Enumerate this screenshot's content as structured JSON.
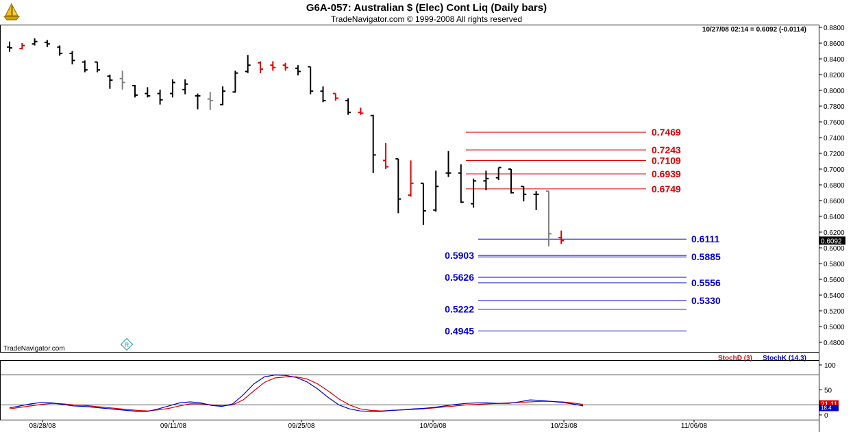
{
  "header": {
    "title": "G6A-057:  Australian $ (Elec) Cont Liq  (Daily bars)",
    "subtitle": "TradeNavigator.com © 1999-2008 All rights reserved",
    "quote": "10/27/08 02:14 = 0.6092 (-0.0114)",
    "watermark": "TradeNavigator.com",
    "logo_icon": "sailboat-logo-icon",
    "reg_mark": "R"
  },
  "chart_data": [
    {
      "type": "ohlc",
      "title": "G6A-057:  Australian $ (Elec) Cont Liq  (Daily bars)",
      "ylim": [
        0.48,
        0.88
      ],
      "y_ticks": [
        "0.8800",
        "0.8600",
        "0.8400",
        "0.8200",
        "0.8000",
        "0.7800",
        "0.7600",
        "0.7400",
        "0.7200",
        "0.7000",
        "0.6800",
        "0.6600",
        "0.6400",
        "0.6200",
        "0.6000",
        "0.5800",
        "0.5600",
        "0.5400",
        "0.5200",
        "0.5000",
        "0.4800"
      ],
      "x_ticks": [
        "08/28/08",
        "09/11/08",
        "09/25/08",
        "10/09/08",
        "10/23/08",
        "11/06/08"
      ],
      "last_price": "0.6092",
      "colors": {
        "up": "#000000",
        "down_red": "#dd0000",
        "gray": "#808080",
        "green": "#00aa00"
      },
      "bars": [
        {
          "o": 0.855,
          "h": 0.862,
          "l": 0.849,
          "c": 0.854,
          "color": "black"
        },
        {
          "o": 0.853,
          "h": 0.86,
          "l": 0.852,
          "c": 0.857,
          "color": "red"
        },
        {
          "o": 0.859,
          "h": 0.866,
          "l": 0.857,
          "c": 0.862,
          "color": "black"
        },
        {
          "o": 0.861,
          "h": 0.864,
          "l": 0.855,
          "c": 0.859,
          "color": "black"
        },
        {
          "o": 0.855,
          "h": 0.857,
          "l": 0.844,
          "c": 0.847,
          "color": "black"
        },
        {
          "o": 0.847,
          "h": 0.85,
          "l": 0.833,
          "c": 0.838,
          "color": "black"
        },
        {
          "o": 0.836,
          "h": 0.838,
          "l": 0.823,
          "c": 0.826,
          "color": "black"
        },
        {
          "o": 0.836,
          "h": 0.836,
          "l": 0.823,
          "c": 0.826,
          "color": "black"
        },
        {
          "o": 0.818,
          "h": 0.82,
          "l": 0.802,
          "c": 0.813,
          "color": "black"
        },
        {
          "o": 0.815,
          "h": 0.825,
          "l": 0.801,
          "c": 0.81,
          "color": "gray"
        },
        {
          "o": 0.806,
          "h": 0.807,
          "l": 0.791,
          "c": 0.794,
          "color": "black"
        },
        {
          "o": 0.796,
          "h": 0.804,
          "l": 0.791,
          "c": 0.793,
          "color": "black"
        },
        {
          "o": 0.796,
          "h": 0.801,
          "l": 0.782,
          "c": 0.788,
          "color": "black"
        },
        {
          "o": 0.796,
          "h": 0.814,
          "l": 0.791,
          "c": 0.81,
          "color": "black"
        },
        {
          "o": 0.801,
          "h": 0.814,
          "l": 0.795,
          "c": 0.808,
          "color": "black"
        },
        {
          "o": 0.793,
          "h": 0.796,
          "l": 0.776,
          "c": 0.793,
          "color": "black"
        },
        {
          "o": 0.789,
          "h": 0.798,
          "l": 0.775,
          "c": 0.787,
          "color": "gray"
        },
        {
          "o": 0.782,
          "h": 0.805,
          "l": 0.781,
          "c": 0.799,
          "color": "black"
        },
        {
          "o": 0.798,
          "h": 0.825,
          "l": 0.797,
          "c": 0.822,
          "color": "black"
        },
        {
          "o": 0.824,
          "h": 0.845,
          "l": 0.822,
          "c": 0.832,
          "color": "black"
        },
        {
          "o": 0.835,
          "h": 0.837,
          "l": 0.822,
          "c": 0.827,
          "color": "red"
        },
        {
          "o": 0.832,
          "h": 0.837,
          "l": 0.825,
          "c": 0.829,
          "color": "red"
        },
        {
          "o": 0.832,
          "h": 0.835,
          "l": 0.825,
          "c": 0.829,
          "color": "red"
        },
        {
          "o": 0.828,
          "h": 0.832,
          "l": 0.819,
          "c": 0.824,
          "color": "black"
        },
        {
          "o": 0.83,
          "h": 0.83,
          "l": 0.795,
          "c": 0.799,
          "color": "black"
        },
        {
          "o": 0.799,
          "h": 0.805,
          "l": 0.785,
          "c": 0.787,
          "color": "black"
        },
        {
          "o": 0.796,
          "h": 0.796,
          "l": 0.787,
          "c": 0.79,
          "color": "red"
        },
        {
          "o": 0.787,
          "h": 0.79,
          "l": 0.769,
          "c": 0.772,
          "color": "black"
        },
        {
          "o": 0.772,
          "h": 0.778,
          "l": 0.769,
          "c": 0.771,
          "color": "red"
        },
        {
          "o": 0.768,
          "h": 0.769,
          "l": 0.695,
          "c": 0.718,
          "color": "black"
        },
        {
          "o": 0.711,
          "h": 0.733,
          "l": 0.7,
          "c": 0.703,
          "color": "red"
        },
        {
          "o": 0.713,
          "h": 0.713,
          "l": 0.644,
          "c": 0.662,
          "color": "black"
        },
        {
          "o": 0.667,
          "h": 0.711,
          "l": 0.665,
          "c": 0.682,
          "color": "red"
        },
        {
          "o": 0.682,
          "h": 0.682,
          "l": 0.629,
          "c": 0.647,
          "color": "black"
        },
        {
          "o": 0.648,
          "h": 0.698,
          "l": 0.646,
          "c": 0.678,
          "color": "black"
        },
        {
          "o": 0.695,
          "h": 0.723,
          "l": 0.69,
          "c": 0.695,
          "color": "black"
        },
        {
          "o": 0.695,
          "h": 0.706,
          "l": 0.657,
          "c": 0.658,
          "color": "black"
        },
        {
          "o": 0.656,
          "h": 0.688,
          "l": 0.651,
          "c": 0.685,
          "color": "black"
        },
        {
          "o": 0.685,
          "h": 0.698,
          "l": 0.673,
          "c": 0.688,
          "color": "black"
        },
        {
          "o": 0.689,
          "h": 0.702,
          "l": 0.686,
          "c": 0.702,
          "color": "black"
        },
        {
          "o": 0.7,
          "h": 0.7,
          "l": 0.669,
          "c": 0.67,
          "color": "black"
        },
        {
          "o": 0.678,
          "h": 0.678,
          "l": 0.659,
          "c": 0.668,
          "color": "black"
        },
        {
          "o": 0.668,
          "h": 0.672,
          "l": 0.648,
          "c": 0.668,
          "color": "black"
        },
        {
          "o": 0.672,
          "h": 0.672,
          "l": 0.602,
          "c": 0.618,
          "color": "gray"
        },
        {
          "o": 0.613,
          "h": 0.622,
          "l": 0.605,
          "c": 0.6092,
          "color": "red"
        }
      ],
      "resistance_levels": [
        {
          "label": "0.7469",
          "value": 0.7469
        },
        {
          "label": "0.7243",
          "value": 0.7243
        },
        {
          "label": "0.7109",
          "value": 0.7109
        },
        {
          "label": "0.6939",
          "value": 0.6939
        },
        {
          "label": "0.6749",
          "value": 0.6749
        }
      ],
      "support_levels_right": [
        {
          "label": "0.6111",
          "value": 0.6111
        },
        {
          "label": "0.5885",
          "value": 0.5885
        },
        {
          "label": "0.5556",
          "value": 0.5556
        },
        {
          "label": "0.5330",
          "value": 0.533
        }
      ],
      "support_levels_left": [
        {
          "label": "0.5903",
          "value": 0.5903
        },
        {
          "label": "0.5626",
          "value": 0.5626
        },
        {
          "label": "0.5222",
          "value": 0.5222
        },
        {
          "label": "0.4945",
          "value": 0.4945
        }
      ],
      "level_colors": {
        "resistance": "#dd0000",
        "support": "#0000cc"
      }
    },
    {
      "type": "line",
      "title": "",
      "legend": [
        {
          "name": "StochD (3)",
          "color": "#dd0000"
        },
        {
          "name": "StochK (14,3)",
          "color": "#0000cc"
        }
      ],
      "ylim": [
        0,
        100
      ],
      "y_ticks": [
        "100",
        "50",
        "0"
      ],
      "guide_lines": [
        80,
        20
      ],
      "last_values": [
        "21.11",
        "18.4"
      ],
      "series": [
        {
          "name": "StochD (3)",
          "color": "#dd0000",
          "values": [
            12,
            15,
            18,
            21,
            23,
            22,
            20,
            19,
            17,
            15,
            13,
            11,
            9,
            8,
            10,
            13,
            18,
            22,
            22,
            20,
            18,
            20,
            30,
            48,
            65,
            74,
            76,
            76,
            72,
            62,
            48,
            32,
            20,
            12,
            9,
            8,
            9,
            10,
            11,
            12,
            14,
            16,
            18,
            20,
            21,
            22,
            23,
            24,
            25,
            26,
            27,
            27,
            26,
            24,
            21
          ]
        },
        {
          "name": "StochK (14,3)",
          "color": "#0000cc",
          "values": [
            14,
            18,
            22,
            25,
            24,
            21,
            18,
            17,
            15,
            13,
            11,
            9,
            7,
            7,
            12,
            18,
            24,
            26,
            24,
            19,
            17,
            22,
            40,
            62,
            76,
            80,
            79,
            75,
            66,
            52,
            35,
            20,
            12,
            8,
            7,
            7,
            9,
            10,
            12,
            13,
            15,
            18,
            21,
            23,
            24,
            24,
            23,
            23,
            26,
            30,
            29,
            27,
            25,
            22,
            18
          ]
        }
      ]
    }
  ]
}
